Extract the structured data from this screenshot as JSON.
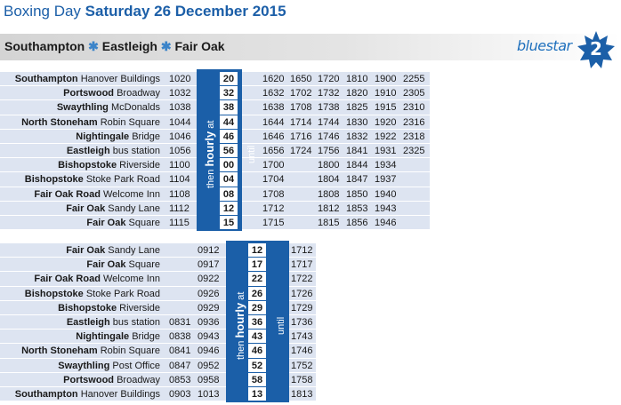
{
  "header": {
    "title_prefix": "Boxing Day",
    "title_date": "Saturday 26 December 2015",
    "route": {
      "a": "Southampton",
      "sep1": "✱",
      "b": "Eastleigh",
      "sep2": "✱",
      "c": "Fair Oak"
    },
    "brand": "bluestar",
    "route_number": "2"
  },
  "colors": {
    "accent": "#1b5fa8",
    "row_tint": "#dde4f1",
    "title": "#1c5fa8"
  },
  "tables": [
    {
      "stops": [
        {
          "stop": "Southampton",
          "detail": "Hanover Buildings"
        },
        {
          "stop": "Portswood",
          "detail": "Broadway"
        },
        {
          "stop": "Swaythling",
          "detail": "McDonalds"
        },
        {
          "stop": "North Stoneham",
          "detail": "Robin Square"
        },
        {
          "stop": "Nightingale",
          "detail": "Bridge"
        },
        {
          "stop": "Eastleigh",
          "detail": "bus station"
        },
        {
          "stop": "Bishopstoke",
          "detail": "Riverside"
        },
        {
          "stop": "Bishopstoke",
          "detail": "Stoke Park Road"
        },
        {
          "stop": "Fair Oak Road",
          "detail": "Welcome Inn"
        },
        {
          "stop": "Fair Oak",
          "detail": "Sandy Lane"
        },
        {
          "stop": "Fair Oak",
          "detail": "Square"
        }
      ],
      "before": [
        [
          "1020"
        ],
        [
          "1032"
        ],
        [
          "1038"
        ],
        [
          "1044"
        ],
        [
          "1046"
        ],
        [
          "1056"
        ],
        [
          "1100"
        ],
        [
          "1104"
        ],
        [
          "1108"
        ],
        [
          "1112"
        ],
        [
          "1115"
        ]
      ],
      "hourly_minutes": [
        "20",
        "32",
        "38",
        "44",
        "46",
        "56",
        "00",
        "04",
        "08",
        "12",
        "15"
      ],
      "hourly_label": {
        "pre": "then",
        "bold": "hourly",
        "post": "at"
      },
      "until_label": "until",
      "after": [
        [
          "1620",
          "1650",
          "1720",
          "1810",
          "1900",
          "2255"
        ],
        [
          "1632",
          "1702",
          "1732",
          "1820",
          "1910",
          "2305"
        ],
        [
          "1638",
          "1708",
          "1738",
          "1825",
          "1915",
          "2310"
        ],
        [
          "1644",
          "1714",
          "1744",
          "1830",
          "1920",
          "2316"
        ],
        [
          "1646",
          "1716",
          "1746",
          "1832",
          "1922",
          "2318"
        ],
        [
          "1656",
          "1724",
          "1756",
          "1841",
          "1931",
          "2325"
        ],
        [
          "1700",
          "",
          "1800",
          "1844",
          "1934",
          ""
        ],
        [
          "1704",
          "",
          "1804",
          "1847",
          "1937",
          ""
        ],
        [
          "1708",
          "",
          "1808",
          "1850",
          "1940",
          ""
        ],
        [
          "1712",
          "",
          "1812",
          "1853",
          "1943",
          ""
        ],
        [
          "1715",
          "",
          "1815",
          "1856",
          "1946",
          ""
        ]
      ]
    },
    {
      "stops": [
        {
          "stop": "Fair Oak",
          "detail": "Sandy Lane"
        },
        {
          "stop": "Fair Oak",
          "detail": "Square"
        },
        {
          "stop": "Fair Oak Road",
          "detail": "Welcome Inn"
        },
        {
          "stop": "Bishopstoke",
          "detail": "Stoke Park Road"
        },
        {
          "stop": "Bishopstoke",
          "detail": "Riverside"
        },
        {
          "stop": "Eastleigh",
          "detail": "bus station"
        },
        {
          "stop": "Nightingale",
          "detail": "Bridge"
        },
        {
          "stop": "North Stoneham",
          "detail": "Robin Square"
        },
        {
          "stop": "Swaythling",
          "detail": "Post Office"
        },
        {
          "stop": "Portswood",
          "detail": "Broadway"
        },
        {
          "stop": "Southampton",
          "detail": "Hanover Buildings"
        }
      ],
      "before": [
        [
          "",
          "0912"
        ],
        [
          "",
          "0917"
        ],
        [
          "",
          "0922"
        ],
        [
          "",
          "0926"
        ],
        [
          "",
          "0929"
        ],
        [
          "0831",
          "0936"
        ],
        [
          "0838",
          "0943"
        ],
        [
          "0841",
          "0946"
        ],
        [
          "0847",
          "0952"
        ],
        [
          "0853",
          "0958"
        ],
        [
          "0903",
          "1013"
        ]
      ],
      "hourly_minutes": [
        "12",
        "17",
        "22",
        "26",
        "29",
        "36",
        "43",
        "46",
        "52",
        "58",
        "13"
      ],
      "hourly_label": {
        "pre": "then",
        "bold": "hourly",
        "post": "at"
      },
      "until_label": "until",
      "after": [
        [
          "1712"
        ],
        [
          "1717"
        ],
        [
          "1722"
        ],
        [
          "1726"
        ],
        [
          "1729"
        ],
        [
          "1736"
        ],
        [
          "1743"
        ],
        [
          "1746"
        ],
        [
          "1752"
        ],
        [
          "1758"
        ],
        [
          "1813"
        ]
      ]
    }
  ]
}
